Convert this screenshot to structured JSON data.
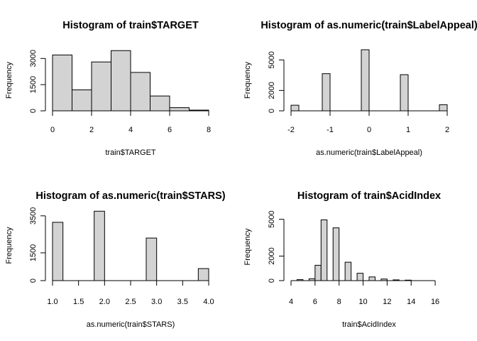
{
  "chart_data": [
    {
      "type": "bar",
      "title": "Histogram of train$TARGET",
      "xlabel": "train$TARGET",
      "ylabel": "Frequency",
      "xlim": [
        0,
        8
      ],
      "ylim": [
        0,
        3500
      ],
      "bin_width": 1,
      "bin_starts": [
        0,
        1,
        2,
        3,
        4,
        5,
        6,
        7
      ],
      "values": [
        3200,
        1200,
        2800,
        3450,
        2200,
        850,
        180,
        40
      ],
      "x_ticks": [
        0,
        2,
        4,
        6,
        8
      ],
      "y_ticks": [
        0,
        1500,
        3000
      ]
    },
    {
      "type": "bar",
      "title": "Histogram of as.numeric(train$LabelAppeal)",
      "xlabel": "as.numeric(train$LabelAppeal)",
      "ylabel": "Frequency",
      "xlim": [
        -2,
        2
      ],
      "ylim": [
        0,
        6000
      ],
      "bin_width": 0.2,
      "bin_starts": [
        -2.0,
        -1.2,
        -0.2,
        0.8,
        1.8
      ],
      "values": [
        550,
        3650,
        6000,
        3550,
        600
      ],
      "x_ticks": [
        -2,
        -1,
        0,
        1,
        2
      ],
      "y_ticks": [
        0,
        2000,
        5000
      ]
    },
    {
      "type": "bar",
      "title": "Histogram of as.numeric(train$STARS)",
      "xlabel": "as.numeric(train$STARS)",
      "ylabel": "Frequency",
      "xlim": [
        1.0,
        4.0
      ],
      "ylim": [
        0,
        3800
      ],
      "bin_width": 0.2,
      "bin_starts": [
        1.0,
        1.8,
        2.8,
        3.8
      ],
      "values": [
        3150,
        3750,
        2300,
        650
      ],
      "x_ticks": [
        "1.0",
        "1.5",
        "2.0",
        "2.5",
        "3.0",
        "3.5",
        "4.0"
      ],
      "y_ticks": [
        0,
        1500,
        3500
      ]
    },
    {
      "type": "bar",
      "title": "Histogram of train$AcidIndex",
      "xlabel": "train$AcidIndex",
      "ylabel": "Frequency",
      "xlim": [
        4,
        17
      ],
      "ylim": [
        0,
        5500
      ],
      "bin_width": 0.5,
      "bin_starts": [
        4.5,
        5.5,
        6.0,
        6.5,
        7.5,
        8.5,
        9.5,
        10.5,
        11.5,
        12.5,
        13.5
      ],
      "values": [
        80,
        150,
        1250,
        4950,
        4300,
        1500,
        600,
        300,
        130,
        60,
        40
      ],
      "x_ticks": [
        4,
        6,
        8,
        10,
        12,
        14,
        16
      ],
      "y_ticks": [
        0,
        2000,
        5000
      ]
    }
  ]
}
